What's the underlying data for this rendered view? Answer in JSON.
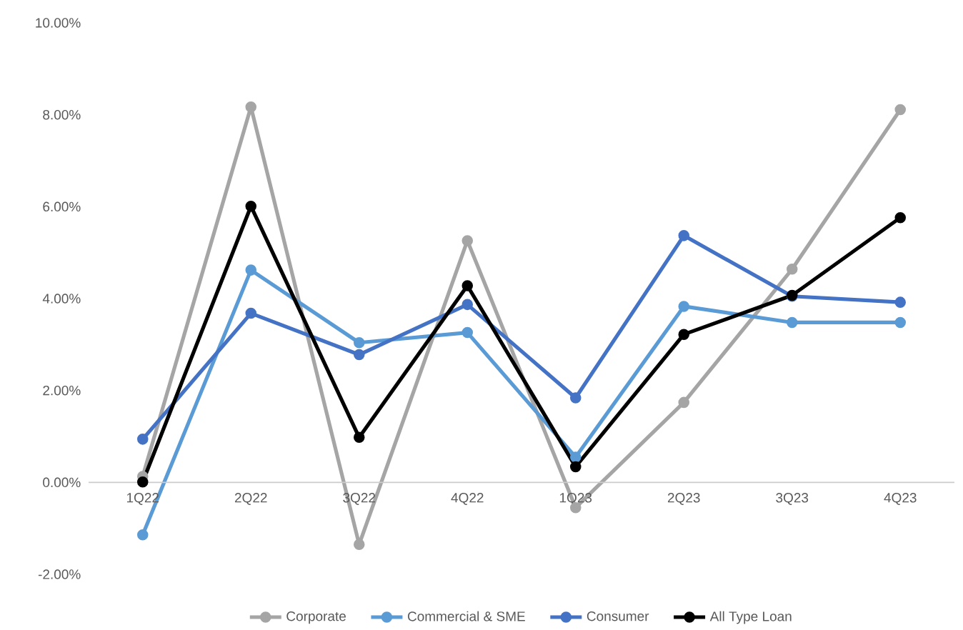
{
  "chart_data": {
    "type": "line",
    "categories": [
      "1Q22",
      "2Q22",
      "3Q22",
      "4Q22",
      "1Q23",
      "2Q23",
      "3Q23",
      "4Q23"
    ],
    "series": [
      {
        "name": "Corporate",
        "color": "#a5a5a5",
        "values": [
          0.13,
          8.17,
          -1.35,
          5.26,
          -0.55,
          1.74,
          4.64,
          8.11
        ]
      },
      {
        "name": "Commercial & SME",
        "color": "#5b9bd5",
        "values": [
          -1.14,
          4.62,
          3.04,
          3.26,
          0.55,
          3.83,
          3.48,
          3.48
        ]
      },
      {
        "name": "Consumer",
        "color": "#4472c4",
        "values": [
          0.94,
          3.68,
          2.78,
          3.87,
          1.84,
          5.37,
          4.05,
          3.92
        ]
      },
      {
        "name": "All Type Loan",
        "color": "#000000",
        "values": [
          0.01,
          6.01,
          0.98,
          4.28,
          0.34,
          3.22,
          4.07,
          5.76
        ]
      }
    ],
    "ylim": [
      -2,
      10
    ],
    "yticks": [
      {
        "value": -2,
        "label": "-2.00%"
      },
      {
        "value": 0,
        "label": "0.00%"
      },
      {
        "value": 2,
        "label": "2.00%"
      },
      {
        "value": 4,
        "label": "4.00%"
      },
      {
        "value": 6,
        "label": "6.00%"
      },
      {
        "value": 8,
        "label": "8.00%"
      },
      {
        "value": 10,
        "label": "10.00%"
      }
    ],
    "grid": false,
    "legend": "bottom",
    "marker": "circle",
    "line_style": "solid"
  }
}
